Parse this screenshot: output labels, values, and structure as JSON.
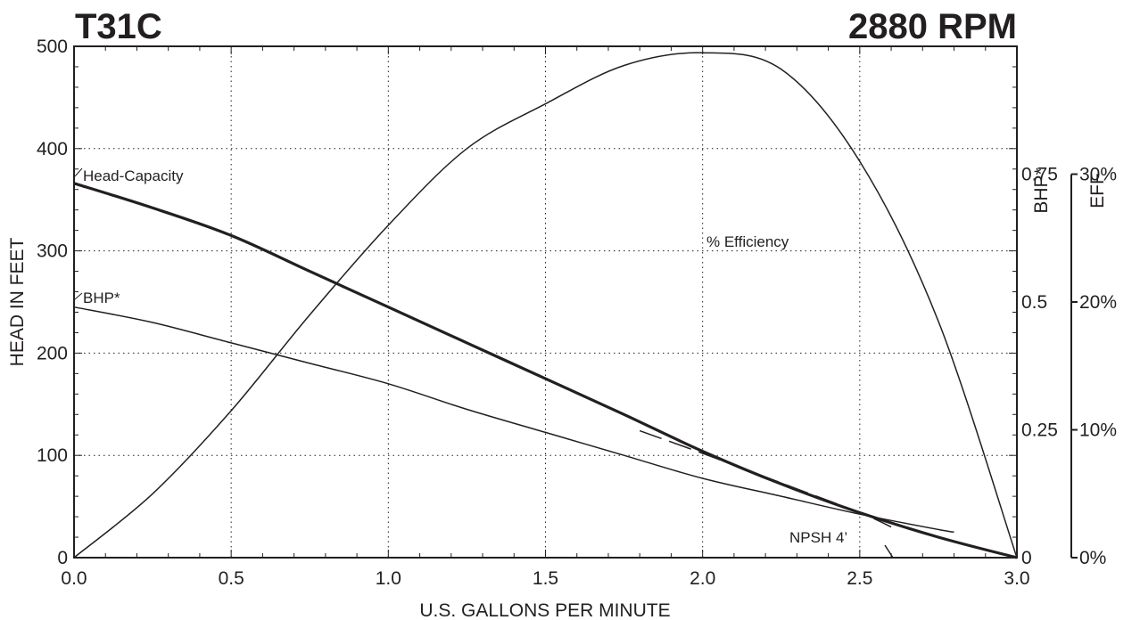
{
  "chart_data": {
    "type": "line",
    "title_left": "T31C",
    "title_right": "2880 RPM",
    "xlabel": "U.S. GALLONS PER MINUTE",
    "ylabel": "HEAD IN FEET",
    "y2label": "BHP*",
    "y3label": "EFF",
    "xlim": [
      0,
      3.0
    ],
    "ylim": [
      0,
      500
    ],
    "y2lim": [
      0,
      1.0
    ],
    "y3lim": [
      0,
      40
    ],
    "x_ticks": [
      "0.0",
      "0.5",
      "1.0",
      "1.5",
      "2.0",
      "2.5",
      "3.0"
    ],
    "y_ticks": [
      "0",
      "100",
      "200",
      "300",
      "400",
      "500"
    ],
    "y2_ticks": [
      "0",
      "0.25",
      "0.5",
      "0.75"
    ],
    "y3_ticks": [
      "0%",
      "10%",
      "20%",
      "30%"
    ],
    "grid": true,
    "series": [
      {
        "name": "Head-Capacity",
        "axis": "head",
        "x": [
          0,
          0.25,
          0.5,
          0.75,
          1.0,
          1.25,
          1.5,
          1.75,
          2.0,
          2.25,
          2.5,
          2.75,
          3.0
        ],
        "y": [
          366,
          342,
          315,
          280,
          245,
          210,
          175,
          140,
          104,
          72,
          44,
          20,
          0
        ]
      },
      {
        "name": "BHP*",
        "axis": "bhp",
        "x": [
          0,
          0.25,
          0.5,
          0.75,
          1.0,
          1.25,
          1.5,
          1.75,
          2.0,
          2.25,
          2.5,
          2.75,
          2.8
        ],
        "y": [
          0.49,
          0.46,
          0.42,
          0.38,
          0.34,
          0.29,
          0.245,
          0.2,
          0.155,
          0.12,
          0.085,
          0.055,
          0.05
        ]
      },
      {
        "name": "% Efficiency",
        "axis": "eff",
        "x": [
          0,
          0.25,
          0.5,
          0.75,
          1.0,
          1.25,
          1.5,
          1.75,
          2.0,
          2.25,
          2.5,
          2.75,
          3.0
        ],
        "y": [
          0,
          5,
          11.5,
          19,
          26,
          32,
          35.5,
          38.5,
          39.5,
          38.2,
          31,
          18.5,
          0
        ]
      },
      {
        "name": "NPSH",
        "axis": "head",
        "dashed": true,
        "x": [
          1.8,
          2.0,
          2.25,
          2.5,
          2.6
        ],
        "y": [
          124,
          102,
          73,
          44,
          30
        ]
      }
    ],
    "annotations": {
      "head": "Head-Capacity",
      "bhp": "BHP*",
      "eff": "% Efficiency",
      "npsh": "NPSH  4’"
    }
  }
}
